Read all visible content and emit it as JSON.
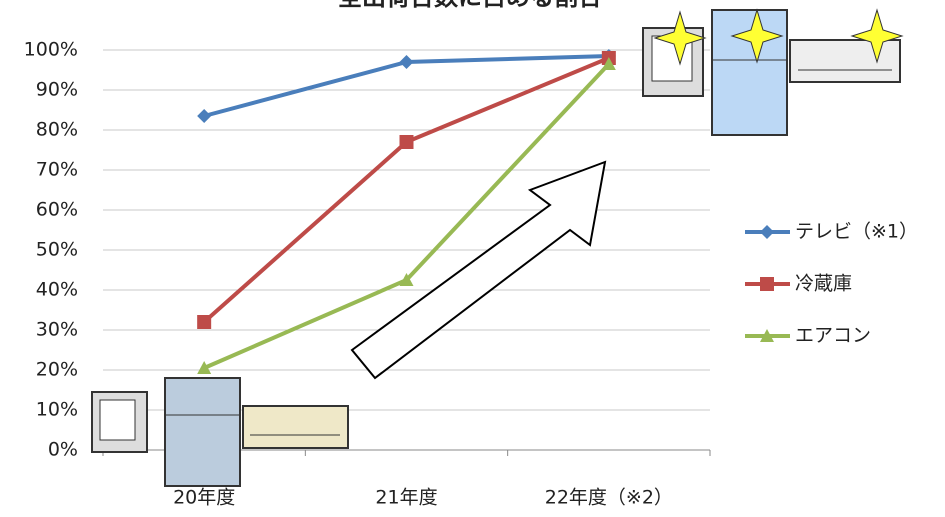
{
  "chart_data": {
    "type": "line",
    "title": "全出荷台数に占める割合",
    "categories": [
      "20年度",
      "21年度",
      "22年度（※2）"
    ],
    "series": [
      {
        "name": "テレビ（※1）",
        "color": "#4a7ebb",
        "marker": "diamond",
        "values": [
          83.5,
          97,
          98.5
        ]
      },
      {
        "name": "冷蔵庫",
        "color": "#be4b48",
        "marker": "square",
        "values": [
          32,
          77,
          98
        ]
      },
      {
        "name": "エアコン",
        "color": "#98b954",
        "marker": "triangle",
        "values": [
          20.5,
          42.5,
          96.5
        ]
      }
    ],
    "ylim": [
      0,
      100
    ],
    "yticks": [
      {
        "value": 0,
        "label": "0%"
      },
      {
        "value": 10,
        "label": "10%"
      },
      {
        "value": 20,
        "label": "20%"
      },
      {
        "value": 30,
        "label": "30%"
      },
      {
        "value": 40,
        "label": "40%"
      },
      {
        "value": 50,
        "label": "50%"
      },
      {
        "value": 60,
        "label": "60%"
      },
      {
        "value": 70,
        "label": "70%"
      },
      {
        "value": 80,
        "label": "80%"
      },
      {
        "value": 90,
        "label": "90%"
      },
      {
        "value": 100,
        "label": "100%"
      }
    ],
    "grid": true,
    "legend": "right"
  }
}
